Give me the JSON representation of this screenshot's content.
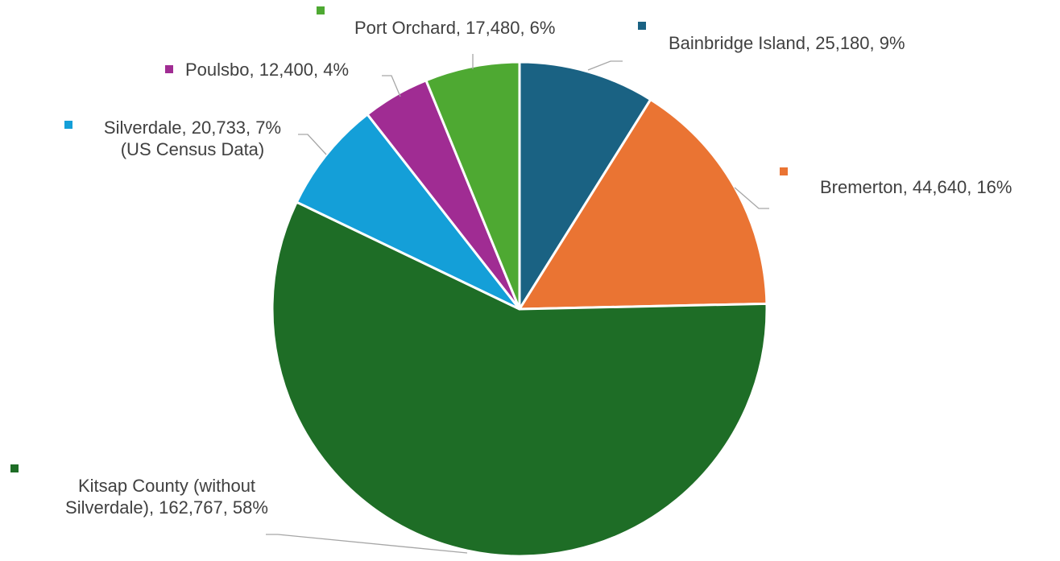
{
  "chart_data": {
    "type": "pie",
    "title": "",
    "slices": [
      {
        "category": "Bainbridge Island",
        "value": 25180,
        "percent": "9%",
        "color": "#1a6283",
        "label_lines": [
          "Bainbridge Island, 25,180, 9%"
        ]
      },
      {
        "category": "Bremerton",
        "value": 44640,
        "percent": "16%",
        "color": "#ea7433",
        "label_lines": [
          "Bremerton, 44,640, 16%"
        ]
      },
      {
        "category": "Kitsap County (without Silverdale)",
        "value": 162767,
        "percent": "58%",
        "color": "#1e6d26",
        "label_lines": [
          "Kitsap County (without",
          "Silverdale), 162,767, 58%"
        ]
      },
      {
        "category": "Silverdale",
        "value": 20733,
        "percent": "7%",
        "color": "#149fd8",
        "label_lines": [
          "Silverdale, 20,733, 7%",
          "(US Census Data)"
        ]
      },
      {
        "category": "Poulsbo",
        "value": 12400,
        "percent": "4%",
        "color": "#a02c93",
        "label_lines": [
          "Poulsbo, 12,400, 4%"
        ]
      },
      {
        "category": "Port Orchard",
        "value": 17480,
        "percent": "6%",
        "color": "#4ea932",
        "label_lines": [
          "Port Orchard, 17,480, 6%"
        ]
      }
    ],
    "start_angle": "12 o'clock",
    "direction": "clockwise",
    "legend": "none",
    "leader_line_color": "#a6a6a6"
  }
}
